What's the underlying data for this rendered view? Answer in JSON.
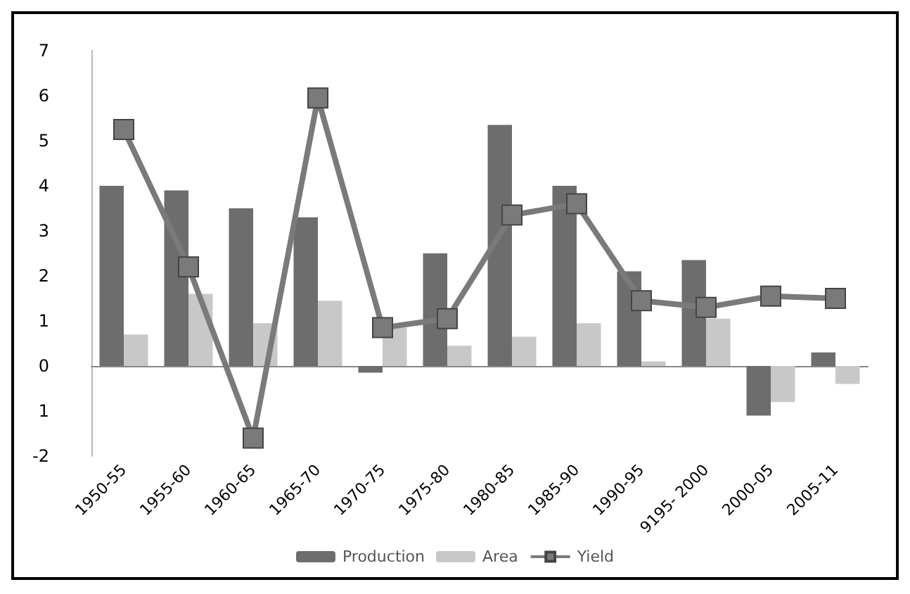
{
  "chart_data": {
    "type": "bar",
    "categories": [
      "1950-55",
      "1955-60",
      "1960-65",
      "1965-70",
      "1970-75",
      "1975-80",
      "1980-85",
      "1985-90",
      "1990-95",
      "9195- 2000",
      "2000-05",
      "2005-11"
    ],
    "series": [
      {
        "name": "Production",
        "color": "#6d6d6d",
        "values": [
          4.0,
          3.9,
          3.5,
          3.3,
          -0.15,
          2.5,
          5.35,
          4.0,
          2.1,
          2.35,
          -1.1,
          0.3
        ]
      },
      {
        "name": "Area",
        "color": "#c8c8c8",
        "values": [
          0.7,
          1.6,
          0.95,
          1.45,
          0.85,
          0.45,
          0.65,
          0.95,
          0.1,
          1.05,
          -0.8,
          -0.4
        ]
      },
      {
        "name": "Yield",
        "type": "line",
        "color": "#7a7a7a",
        "marker": "square",
        "values": [
          5.25,
          2.2,
          -1.6,
          5.95,
          0.85,
          1.05,
          3.35,
          3.6,
          1.45,
          1.3,
          1.55,
          1.5
        ]
      }
    ],
    "ylim": [
      -2,
      7
    ],
    "yticks": [
      -2,
      {
        "value": -1,
        "label": "1"
      },
      0,
      1,
      2,
      3,
      4,
      5,
      6,
      7
    ],
    "legend": "bottom"
  }
}
